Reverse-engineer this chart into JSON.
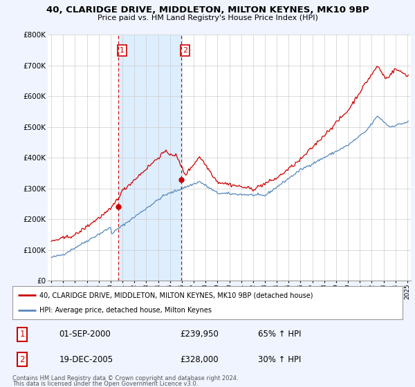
{
  "title": "40, CLARIDGE DRIVE, MIDDLETON, MILTON KEYNES, MK10 9BP",
  "subtitle": "Price paid vs. HM Land Registry's House Price Index (HPI)",
  "legend_line1": "40, CLARIDGE DRIVE, MIDDLETON, MILTON KEYNES, MK10 9BP (detached house)",
  "legend_line2": "HPI: Average price, detached house, Milton Keynes",
  "table_row1": [
    "1",
    "01-SEP-2000",
    "£239,950",
    "65% ↑ HPI"
  ],
  "table_row2": [
    "2",
    "19-DEC-2005",
    "£328,000",
    "30% ↑ HPI"
  ],
  "footnote1": "Contains HM Land Registry data © Crown copyright and database right 2024.",
  "footnote2": "This data is licensed under the Open Government Licence v3.0.",
  "sale1_year": 2000.67,
  "sale1_price": 239950,
  "sale2_year": 2005.96,
  "sale2_price": 328000,
  "red_color": "#cc0000",
  "blue_color": "#5588bb",
  "shade_color": "#ddeeff",
  "vline_color": "#cc0000",
  "background_color": "#f0f4ff",
  "plot_bg_color": "#ffffff",
  "grid_color": "#cccccc",
  "ylim_max": 800000,
  "xlim_start": 1994.7,
  "xlim_end": 2025.3
}
